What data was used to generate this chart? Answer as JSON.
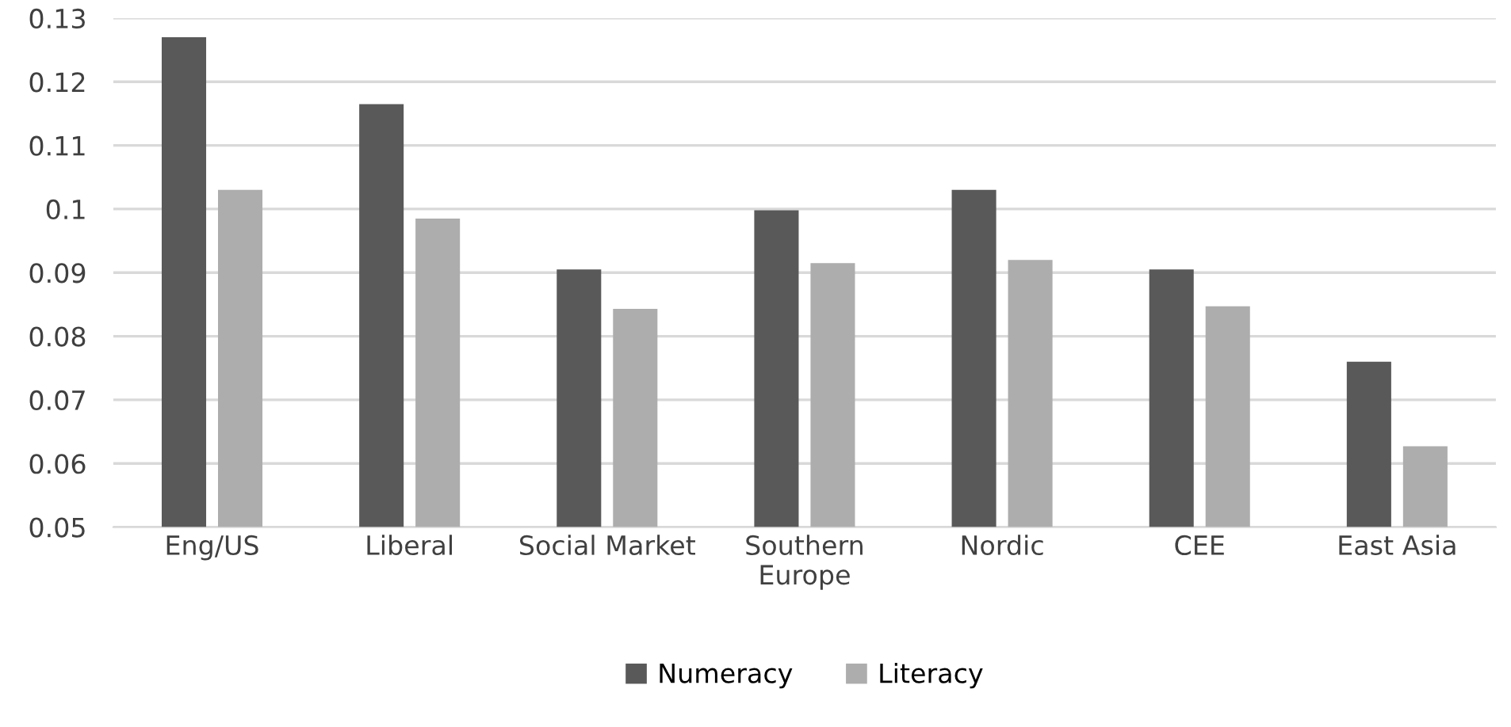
{
  "chart_data": {
    "type": "bar",
    "categories": [
      "Eng/US",
      "Liberal",
      "Social Market",
      "Southern\nEurope",
      "Nordic",
      "CEE",
      "East Asia"
    ],
    "series": [
      {
        "name": "Numeracy",
        "color": "#595959",
        "values": [
          0.127,
          0.1165,
          0.0905,
          0.0998,
          0.103,
          0.0905,
          0.076
        ]
      },
      {
        "name": "Literacy",
        "color": "#adadad",
        "values": [
          0.103,
          0.0985,
          0.0843,
          0.0915,
          0.092,
          0.0847,
          0.0627
        ]
      }
    ],
    "ylim": [
      0.05,
      0.13
    ],
    "yticks": [
      0.05,
      0.06,
      0.07,
      0.08,
      0.09,
      0.1,
      0.11,
      0.12,
      0.13
    ],
    "grid": "y",
    "legend": "bottom"
  }
}
